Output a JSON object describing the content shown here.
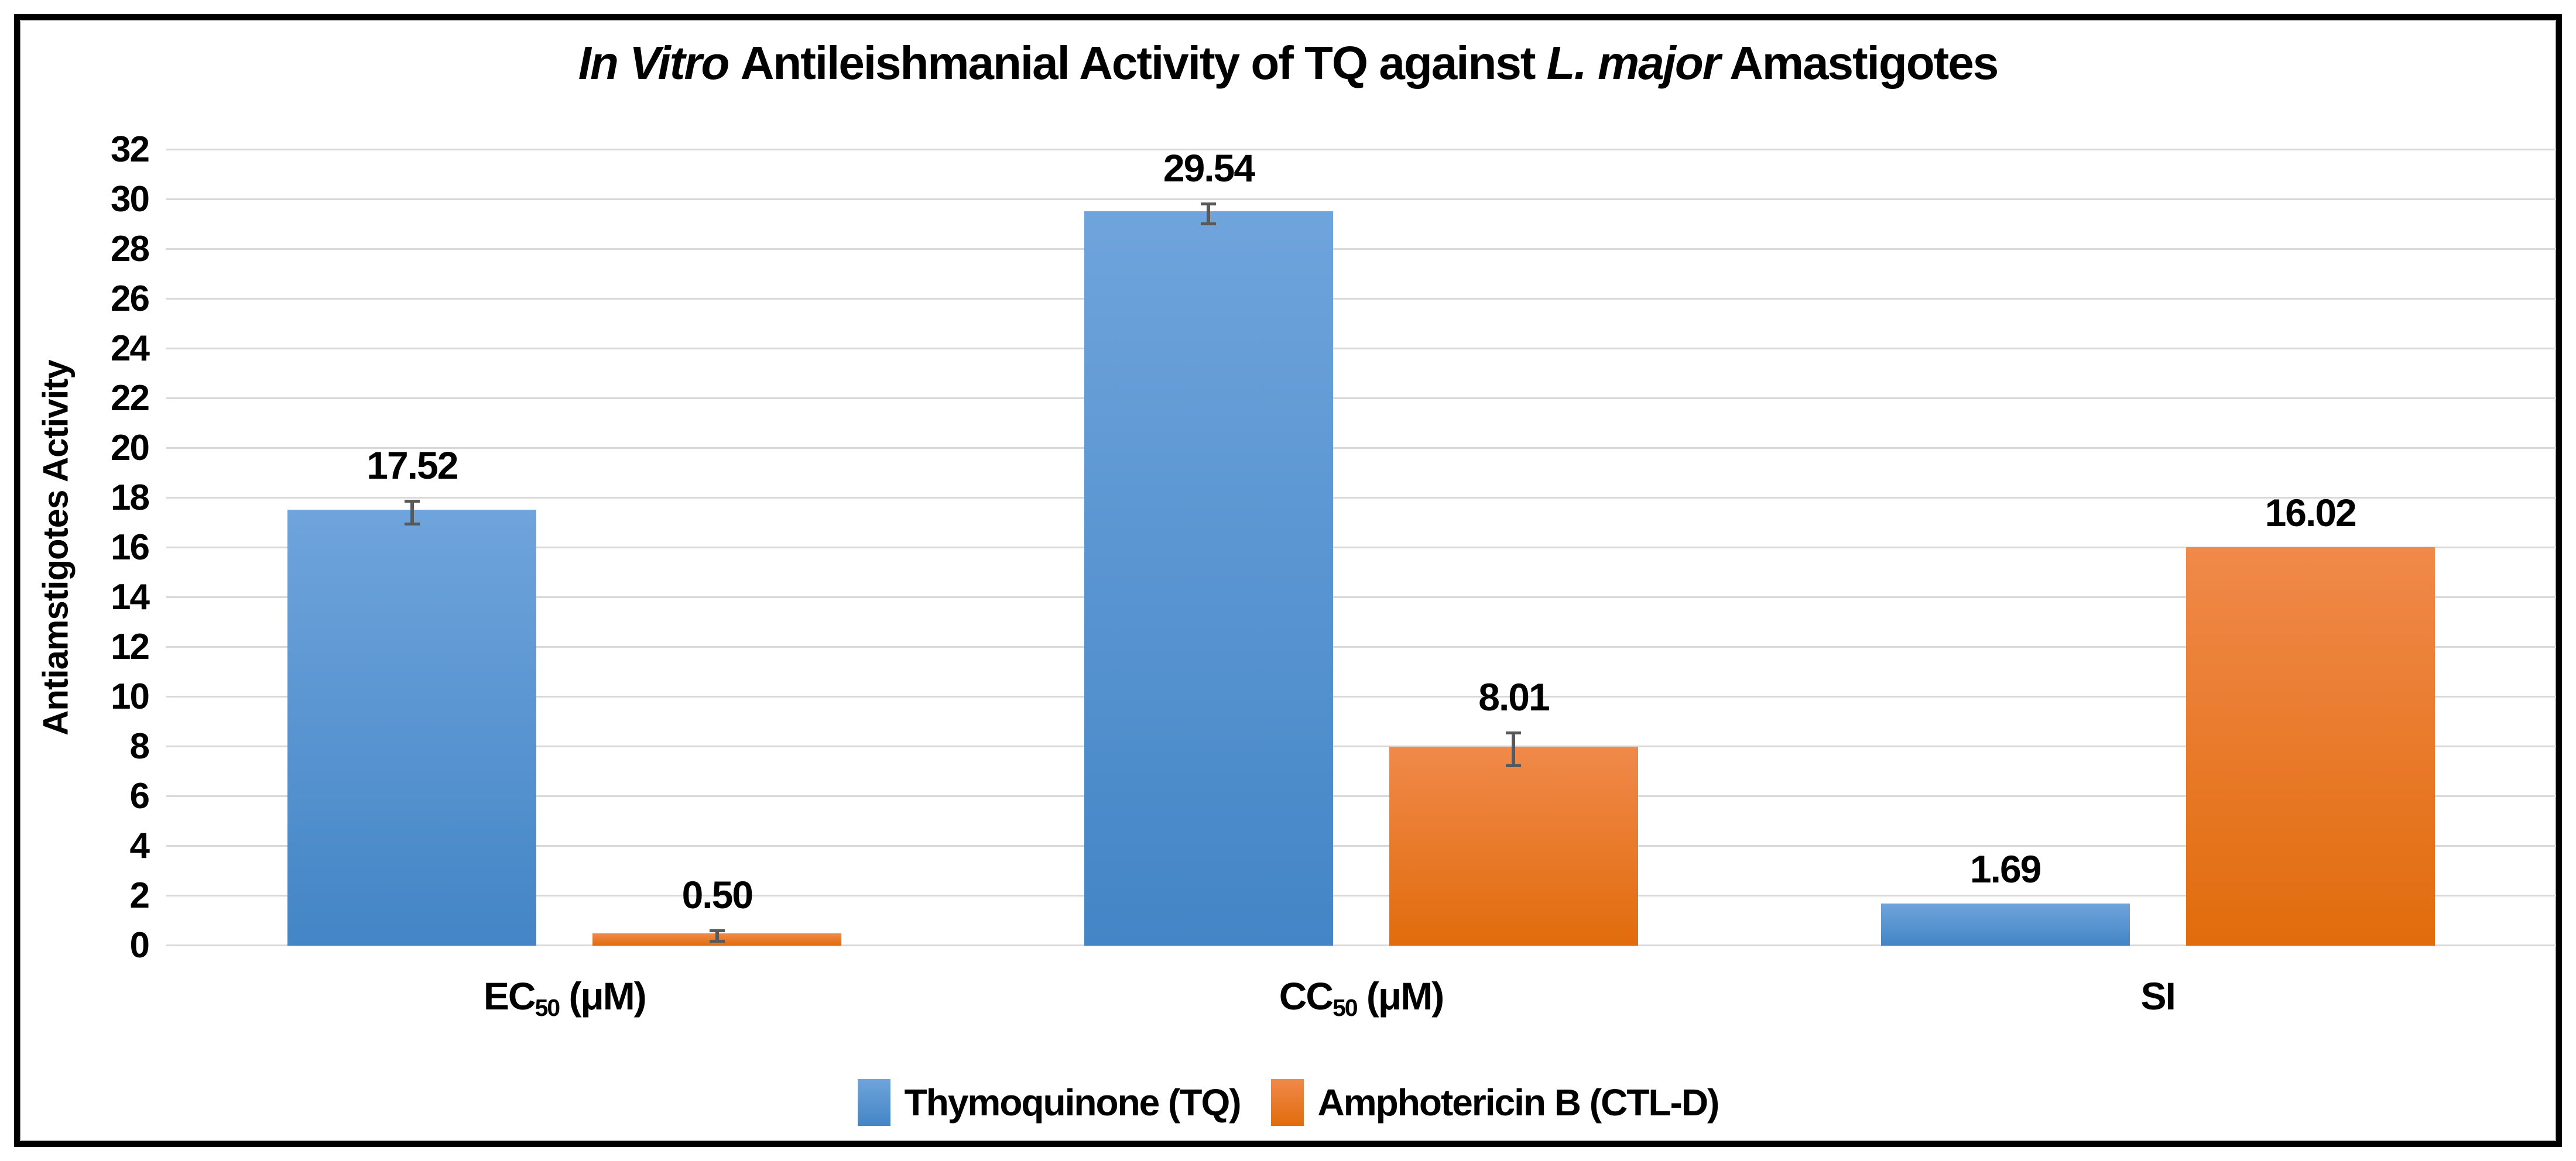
{
  "figure": {
    "title_segments": [
      {
        "text": "In Vitro ",
        "italic": true
      },
      {
        "text": "Antileishmanial Activity of TQ against ",
        "italic": false
      },
      {
        "text": "L. major",
        "italic": true
      },
      {
        "text": " Amastigotes",
        "italic": false
      }
    ]
  },
  "chart_data": {
    "type": "bar",
    "title": "In Vitro Antileishmanial Activity of TQ against L. major Amastigotes",
    "xlabel": "",
    "ylabel": "Antiamstigotes Activity",
    "categories": [
      "EC50 (μM)",
      "CC50 (μM)",
      "SI"
    ],
    "category_label_parts": [
      {
        "pre": "EC",
        "sub": "50",
        "post": " (μM)"
      },
      {
        "pre": "CC",
        "sub": "50",
        "post": " (μM)"
      },
      {
        "pre": "SI",
        "sub": "",
        "post": ""
      }
    ],
    "series": [
      {
        "name": "Thymoquinone (TQ)",
        "values": [
          17.52,
          29.54,
          1.69
        ],
        "labels": [
          "17.52",
          "29.54",
          "1.69"
        ],
        "errors": [
          0.4,
          0.35,
          null
        ]
      },
      {
        "name": "Amphotericin B (CTL-D)",
        "values": [
          0.5,
          8.01,
          16.02
        ],
        "labels": [
          "0.50",
          "8.01",
          "16.02"
        ],
        "errors": [
          0.15,
          0.6,
          null
        ]
      }
    ],
    "ylim": [
      0,
      32
    ],
    "ytick_step": 2,
    "grid": true,
    "legend_position": "bottom",
    "colors": {
      "series_blue_top": "#6FA4DC",
      "series_blue_bottom": "#4385C6",
      "series_orange_top": "#F0894A",
      "series_orange_bottom": "#E16C0C",
      "gridline": "#D9D9D9",
      "error_bar": "#595959",
      "text": "#000000",
      "frame_border": "#000000"
    }
  }
}
